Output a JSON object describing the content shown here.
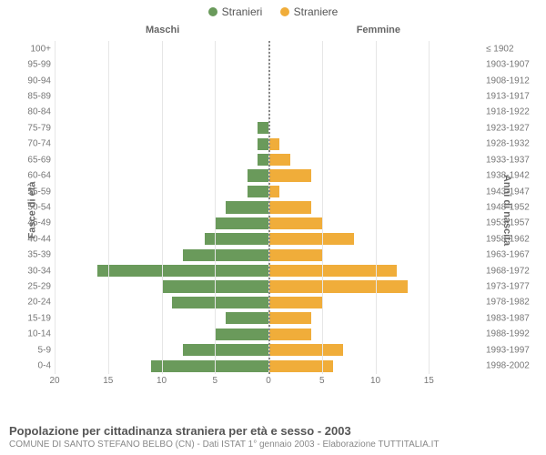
{
  "legend": {
    "male": {
      "label": "Stranieri",
      "color": "#6a9a5b"
    },
    "female": {
      "label": "Straniere",
      "color": "#f0ad3a"
    }
  },
  "headers": {
    "male": "Maschi",
    "female": "Femmine"
  },
  "y_left_title": "Fasce di età",
  "y_right_title": "Anni di nascita",
  "footer": {
    "title": "Popolazione per cittadinanza straniera per età e sesso - 2003",
    "subtitle": "COMUNE DI SANTO STEFANO BELBO (CN) - Dati ISTAT 1° gennaio 2003 - Elaborazione TUTTITALIA.IT"
  },
  "chart": {
    "type": "population-pyramid",
    "xlim": [
      0,
      20
    ],
    "xticks": [
      20,
      15,
      10,
      5,
      0,
      5,
      10,
      15
    ],
    "background_color": "#ffffff",
    "grid_color": "#e6e6e6",
    "center_line_color": "#888888",
    "bar_colors": {
      "male": "#6a9a5b",
      "female": "#f0ad3a"
    },
    "label_color": "#777777",
    "label_fontsize": 10,
    "rows": [
      {
        "age": "100+",
        "birth": "≤ 1902",
        "male": 0,
        "female": 0
      },
      {
        "age": "95-99",
        "birth": "1903-1907",
        "male": 0,
        "female": 0
      },
      {
        "age": "90-94",
        "birth": "1908-1912",
        "male": 0,
        "female": 0
      },
      {
        "age": "85-89",
        "birth": "1913-1917",
        "male": 0,
        "female": 0
      },
      {
        "age": "80-84",
        "birth": "1918-1922",
        "male": 0,
        "female": 0
      },
      {
        "age": "75-79",
        "birth": "1923-1927",
        "male": 1,
        "female": 0
      },
      {
        "age": "70-74",
        "birth": "1928-1932",
        "male": 1,
        "female": 1
      },
      {
        "age": "65-69",
        "birth": "1933-1937",
        "male": 1,
        "female": 2
      },
      {
        "age": "60-64",
        "birth": "1938-1942",
        "male": 2,
        "female": 4
      },
      {
        "age": "55-59",
        "birth": "1943-1947",
        "male": 2,
        "female": 1
      },
      {
        "age": "50-54",
        "birth": "1948-1952",
        "male": 4,
        "female": 4
      },
      {
        "age": "45-49",
        "birth": "1953-1957",
        "male": 5,
        "female": 5
      },
      {
        "age": "40-44",
        "birth": "1958-1962",
        "male": 6,
        "female": 8
      },
      {
        "age": "35-39",
        "birth": "1963-1967",
        "male": 8,
        "female": 5
      },
      {
        "age": "30-34",
        "birth": "1968-1972",
        "male": 16,
        "female": 12
      },
      {
        "age": "25-29",
        "birth": "1973-1977",
        "male": 10,
        "female": 13
      },
      {
        "age": "20-24",
        "birth": "1978-1982",
        "male": 9,
        "female": 5
      },
      {
        "age": "15-19",
        "birth": "1983-1987",
        "male": 4,
        "female": 4
      },
      {
        "age": "10-14",
        "birth": "1988-1992",
        "male": 5,
        "female": 4
      },
      {
        "age": "5-9",
        "birth": "1993-1997",
        "male": 8,
        "female": 7
      },
      {
        "age": "0-4",
        "birth": "1998-2002",
        "male": 11,
        "female": 6
      }
    ]
  }
}
